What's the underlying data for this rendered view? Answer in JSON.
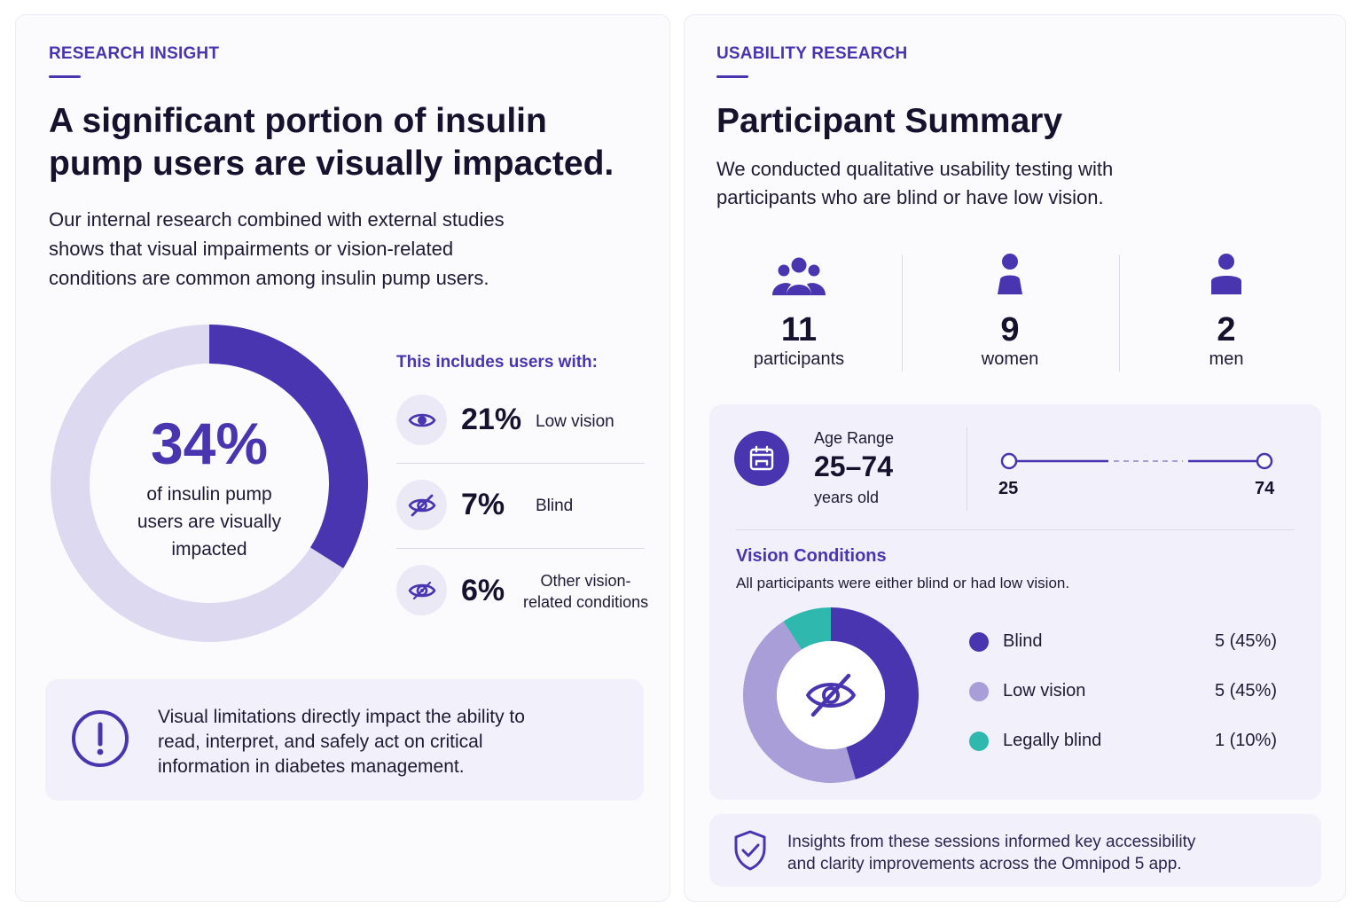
{
  "left": {
    "eyebrow": "RESEARCH INSIGHT",
    "headline_line1": "A significant portion of insulin",
    "headline_line2": "pump users are visually impacted.",
    "intro_line1": "Our internal research combined with external studies",
    "intro_line2": "shows that visual impairments or vision-related",
    "intro_line3": "conditions are common among insulin pump users.",
    "donut": {
      "percent": 34,
      "percent_label": "34%",
      "caption_line1": "of insulin pump",
      "caption_line2": "users are visually",
      "caption_line3": "impacted",
      "filled_color": "#4a35b0",
      "track_color": "#dcd9f0"
    },
    "includes_heading": "This includes users with:",
    "stats": [
      {
        "icon": "eye-icon",
        "value": "21%",
        "label_line1": "Low vision",
        "label_line2": ""
      },
      {
        "icon": "eye-slash-icon",
        "value": "7%",
        "label_line1": "Blind",
        "label_line2": ""
      },
      {
        "icon": "eye-focus-icon",
        "value": "6%",
        "label_line1": "Other vision-",
        "label_line2": "related conditions"
      }
    ],
    "callout": {
      "icon": "alert-circle-icon",
      "line1": "Visual limitations directly impact the ability to",
      "line2": "read, interpret, and safely act on critical",
      "line3": "information in diabetes management."
    }
  },
  "right": {
    "eyebrow": "USABILITY RESEARCH",
    "title": "Participant Summary",
    "intro_line1": "We conducted qualitative usability testing with",
    "intro_line2": "participants who are blind or have low vision.",
    "counts": [
      {
        "icon": "group-icon",
        "value": "11",
        "label": "participants"
      },
      {
        "icon": "woman-icon",
        "value": "9",
        "label": "women"
      },
      {
        "icon": "man-icon",
        "value": "2",
        "label": "men"
      }
    ],
    "age": {
      "label": "Age Range",
      "value": "25–74",
      "unit": "years old",
      "min_label": "25",
      "max_label": "74"
    },
    "vision": {
      "title": "Vision Conditions",
      "subtitle": "All participants were either blind or had low vision.",
      "legend": [
        {
          "label": "Blind",
          "value": "5 (45%)"
        },
        {
          "label": "Low vision",
          "value": "5 (45%)"
        },
        {
          "label": "Legally blind",
          "value": "1 (10%)"
        }
      ]
    },
    "footer": {
      "icon": "shield-check-icon",
      "line1": "Insights from these sessions informed key accessibility",
      "line2": "and clarity improvements across the Omnipod 5 app."
    }
  },
  "chart_data": {
    "type": "pie",
    "categories": [
      "Blind",
      "Low vision",
      "Legally blind"
    ],
    "values": [
      5,
      5,
      1
    ],
    "colors": [
      "#4a35b0",
      "#a99ed8",
      "#2fb8ae"
    ]
  },
  "colors": {
    "accent": "#4a35b0",
    "light": "#a99ed8",
    "teal": "#2fb8ae"
  }
}
